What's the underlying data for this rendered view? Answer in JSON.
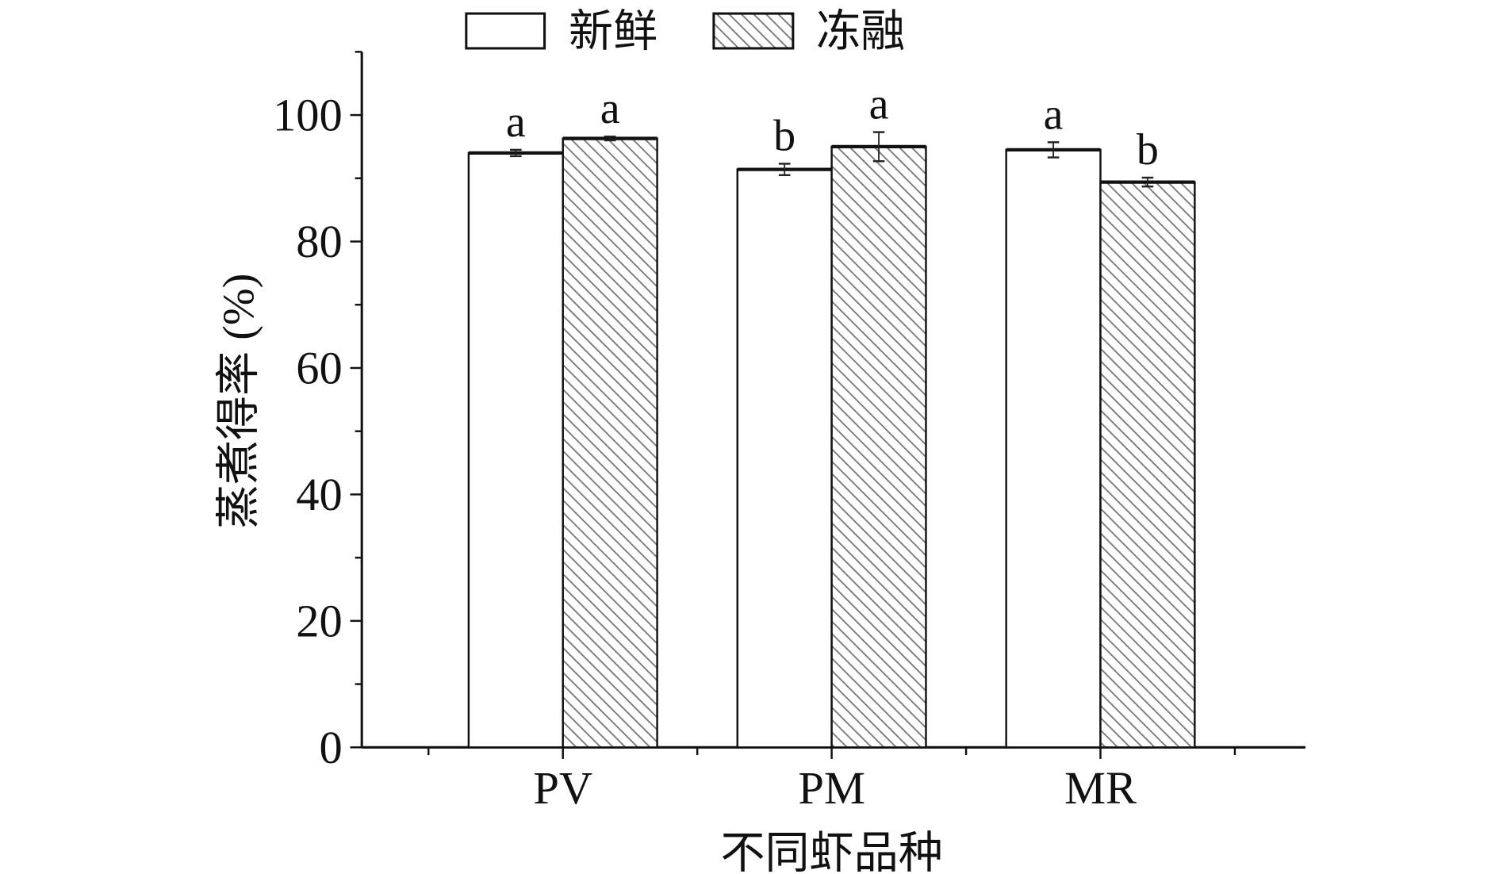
{
  "chart_data": {
    "type": "bar",
    "title": "",
    "xlabel": "不同虾品种",
    "ylabel": "蒸煮得率 (%)",
    "ylim": [
      0,
      110
    ],
    "yticks": [
      0,
      20,
      40,
      60,
      80,
      100
    ],
    "yticks_labels": [
      "0",
      "20",
      "40",
      "60",
      "80",
      "100"
    ],
    "categories": [
      "PV",
      "PM",
      "MR"
    ],
    "legend_position": "top-center",
    "grid": false,
    "series": [
      {
        "name": "新鲜",
        "pattern": "none",
        "values": [
          94.0,
          91.4,
          94.5
        ],
        "errors": [
          0.5,
          0.9,
          1.2
        ],
        "labels": [
          "a",
          "b",
          "a"
        ]
      },
      {
        "name": "冻融",
        "pattern": "hatch",
        "values": [
          96.3,
          95.0,
          89.4
        ],
        "errors": [
          0.3,
          2.3,
          0.7
        ],
        "labels": [
          "a",
          "a",
          "b"
        ]
      }
    ],
    "colors": {
      "axis": "#111111",
      "hatch": "#777777",
      "fill": "#ffffff"
    }
  }
}
